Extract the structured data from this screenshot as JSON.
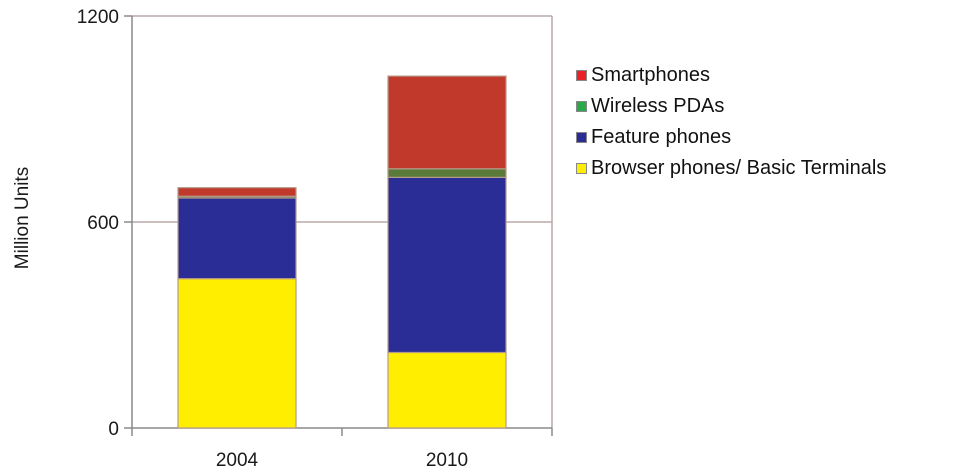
{
  "chart_data": {
    "type": "bar",
    "stacked": true,
    "categories": [
      "2004",
      "2010"
    ],
    "series": [
      {
        "name": "Browser phones/ Basic Terminals",
        "color": "#ffee00",
        "values": [
          435,
          220
        ]
      },
      {
        "name": "Feature phones",
        "color": "#2a2d96",
        "values": [
          235,
          510
        ]
      },
      {
        "name": "Wireless PDAs",
        "color": "#5a7a3a",
        "values": [
          5,
          25
        ]
      },
      {
        "name": "Smartphones",
        "color": "#c0392b",
        "values": [
          25,
          270
        ]
      }
    ],
    "ylabel": "Million Units",
    "xlabel": "",
    "ylim": [
      0,
      1200
    ],
    "yticks": [
      0,
      600,
      1200
    ],
    "grid": true,
    "legend_position": "right"
  },
  "legend": {
    "items": [
      {
        "label": "Smartphones",
        "color": "#e8212a"
      },
      {
        "label": "Wireless PDAs",
        "color": "#2aa84a"
      },
      {
        "label": "Feature phones",
        "color": "#2a2d96"
      },
      {
        "label": "Browser phones/ Basic Terminals",
        "color": "#ffee00"
      }
    ]
  }
}
